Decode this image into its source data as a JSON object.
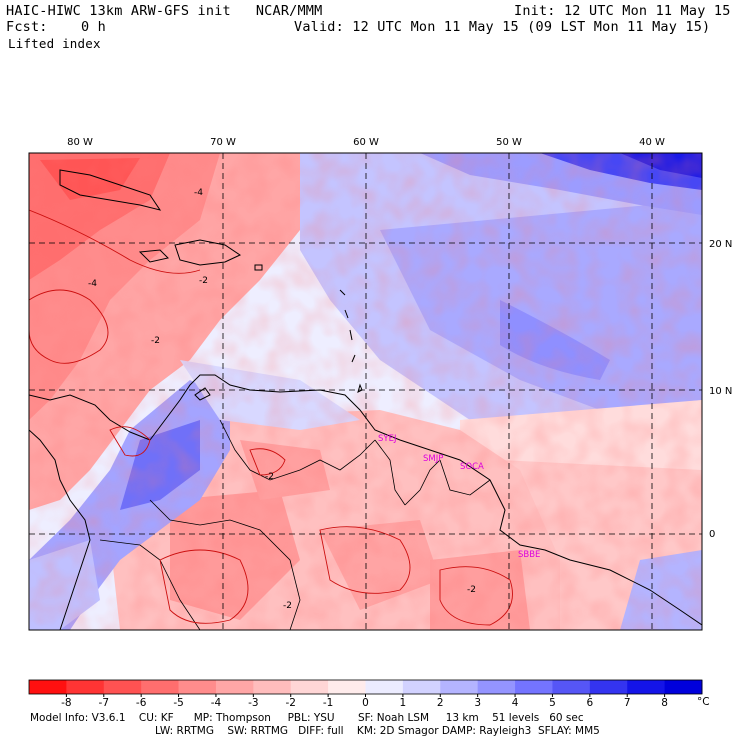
{
  "header": {
    "title_left": "HAIC-HIWC 13km ARW-GFS init   NCAR/MMM",
    "init": "Init: 12 UTC Mon 11 May 15",
    "fcst": "Fcst:    0 h",
    "valid": "Valid: 12 UTC Mon 11 May 15 (09 LST Mon 11 May 15)",
    "field": "Lifted index"
  },
  "map": {
    "lon_labels": [
      "80 W",
      "70 W",
      "60 W",
      "50 W",
      "40 W"
    ],
    "lat_labels": [
      "20 N",
      "10 N",
      "0"
    ],
    "contour_labels": [
      "-4",
      "-4",
      "-2",
      "-2",
      "-2",
      "-2",
      "-2"
    ],
    "stations": [
      "SYEJ",
      "SMJP",
      "SOCA",
      "SBBE"
    ]
  },
  "colorbar": {
    "labels": [
      "-8",
      "-7",
      "-6",
      "-5",
      "-4",
      "-3",
      "-2",
      "-1",
      "0",
      "1",
      "2",
      "3",
      "4",
      "5",
      "6",
      "7",
      "8"
    ],
    "unit": "°C",
    "colors": [
      "#ff1010",
      "#ff3434",
      "#ff5252",
      "#ff6e6e",
      "#ff8c8c",
      "#ffa6a6",
      "#ffbdbd",
      "#ffd6d6",
      "#ffecec",
      "#ececff",
      "#d2d2ff",
      "#b4b4ff",
      "#9494ff",
      "#7474ff",
      "#5656f6",
      "#3434f0",
      "#1414e8",
      "#0000dc"
    ]
  },
  "footer": {
    "line1": "Model Info: V3.6.1    CU: KF      MP: Thompson     PBL: YSU       SF: Noah LSM     13 km    51 levels   60 sec",
    "line2": "LW: RRTMG    SW: RRTMG   DIFF: full    KM: 2D Smagor DAMP: Rayleigh3  SFLAY: MM5"
  }
}
